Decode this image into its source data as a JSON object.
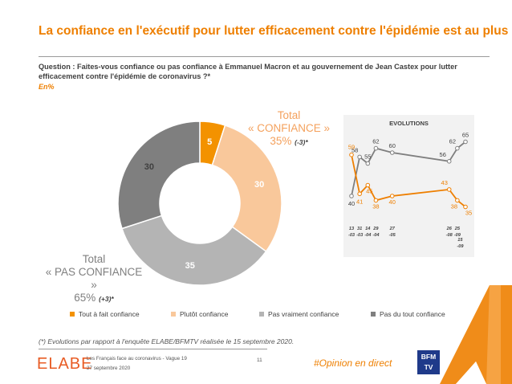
{
  "title": "La confiance en l'exécutif pour lutter efficacement contre l'épidémie est au plus bas",
  "question": "Question : Faites-vous confiance ou pas confiance à Emmanuel Macron et au gouvernement de Jean Castex pour lutter efficacement contre l'épidémie de coronavirus ?*",
  "unit": "En%",
  "total_confiance": {
    "label1": "Total",
    "label2": "« CONFIANCE »",
    "value": "35%",
    "delta": "(-3)*"
  },
  "total_pas_confiance": {
    "label1": "Total",
    "label2": "« PAS CONFIANCE »",
    "value": "65%",
    "delta": "(+3)*"
  },
  "colors": {
    "accent": "#ee7f00",
    "tout_a_fait": "#f39200",
    "plutot": "#f9c89b",
    "pas_vraiment": "#b4b4b4",
    "pas_du_tout": "#7f7f7f"
  },
  "legend": [
    "Tout à fait confiance",
    "Plutôt confiance",
    "Pas vraiment confiance",
    "Pas du tout confiance"
  ],
  "chart_data": [
    {
      "type": "pie",
      "categories": [
        "Tout à fait confiance",
        "Plutôt confiance",
        "Pas vraiment confiance",
        "Pas du tout confiance"
      ],
      "values": [
        5,
        30,
        35,
        30
      ]
    },
    {
      "type": "line",
      "title": "EVOLUTIONS",
      "x_labels": [
        [
          "13",
          "-03"
        ],
        [
          "31",
          "-03"
        ],
        [
          "14",
          "-04"
        ],
        [
          "29",
          "-04"
        ],
        [
          "27",
          "-05"
        ],
        [
          "26",
          "-08"
        ],
        [
          "25",
          "-09"
        ],
        [
          "15",
          "-09"
        ]
      ],
      "x": [
        0,
        1,
        2,
        3,
        5,
        12,
        13,
        14
      ],
      "series": [
        {
          "values": [
            40,
            58,
            55,
            62,
            60,
            56,
            62,
            65
          ]
        },
        {
          "values": [
            59,
            41,
            45,
            38,
            40,
            43,
            38,
            35
          ]
        }
      ]
    }
  ],
  "footnote": "(*) Evolutions par rapport à l'enquête ELABE/BFMTV réalisée le 15 septembre 2020.",
  "footer": {
    "logo": "ELABE",
    "line1": "Les Français face au coronavirus - Vague 19",
    "line2": "27 septembre 2020",
    "page": "11",
    "hashtag": "#Opinion en direct",
    "partner": "BFM TV"
  }
}
